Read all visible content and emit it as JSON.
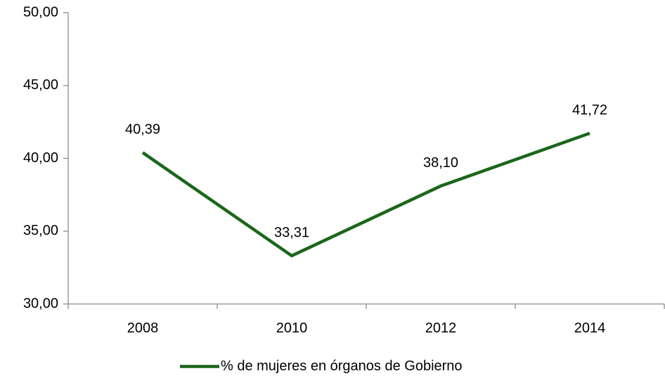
{
  "chart_data": {
    "type": "line",
    "categories": [
      "2008",
      "2010",
      "2012",
      "2014"
    ],
    "series": [
      {
        "name": "% de mujeres en órganos de Gobierno",
        "color": "#1b661b",
        "values": [
          40.39,
          33.31,
          38.1,
          41.72
        ],
        "value_labels": [
          "40,39",
          "33,31",
          "38,10",
          "41,72"
        ]
      }
    ],
    "ylim": [
      30,
      50
    ],
    "yticks": [
      {
        "value": 30,
        "label": "30,00"
      },
      {
        "value": 35,
        "label": "35,00"
      },
      {
        "value": 40,
        "label": "40,00"
      },
      {
        "value": 45,
        "label": "45,00"
      },
      {
        "value": 50,
        "label": "50,00"
      }
    ],
    "grid": false,
    "legend": "bottom"
  }
}
